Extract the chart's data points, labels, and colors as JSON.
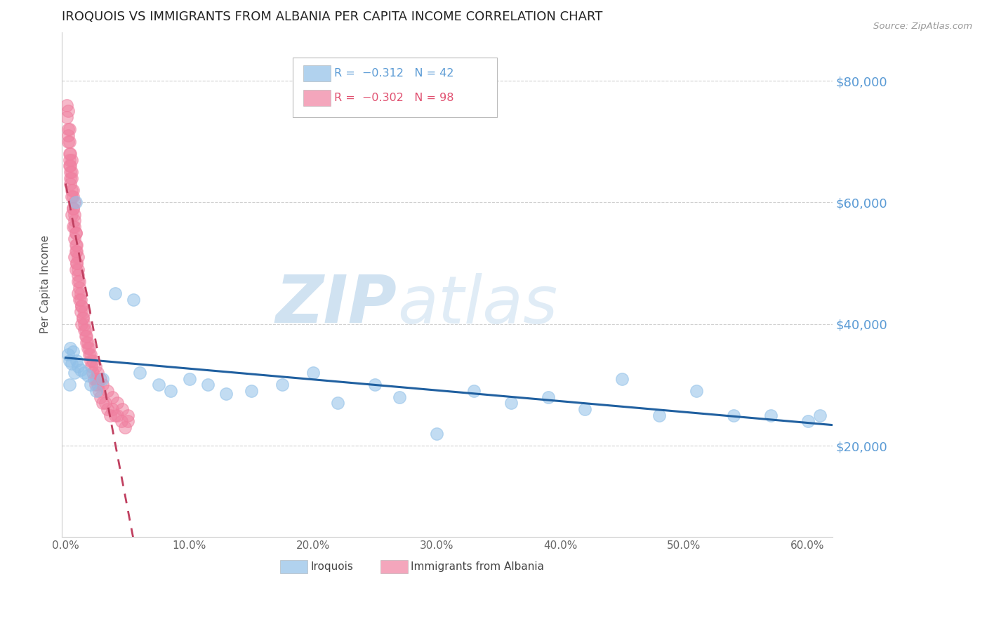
{
  "title": "IROQUOIS VS IMMIGRANTS FROM ALBANIA PER CAPITA INCOME CORRELATION CHART",
  "source": "Source: ZipAtlas.com",
  "ylabel": "Per Capita Income",
  "yticks": [
    20000,
    40000,
    60000,
    80000
  ],
  "ytick_labels": [
    "$20,000",
    "$40,000",
    "$60,000",
    "$80,000"
  ],
  "xlim": [
    -0.003,
    0.62
  ],
  "ylim": [
    5000,
    88000
  ],
  "watermark_zip": "ZIP",
  "watermark_atlas": "atlas",
  "legend_bottom": [
    "Iroquois",
    "Immigrants from Albania"
  ],
  "iroquois_color": "#90C0E8",
  "albania_color": "#F080A0",
  "bg_color": "#FFFFFF",
  "grid_color": "#D0D0D0",
  "title_color": "#222222",
  "tick_label_color": "#5B9BD5",
  "trend_blue_color": "#2060A0",
  "trend_pink_color": "#C04060",
  "watermark_color": "#C8DDEF",
  "iroquois_x": [
    0.002,
    0.003,
    0.004,
    0.005,
    0.006,
    0.007,
    0.008,
    0.009,
    0.01,
    0.012,
    0.015,
    0.018,
    0.02,
    0.025,
    0.03,
    0.04,
    0.055,
    0.06,
    0.075,
    0.085,
    0.1,
    0.115,
    0.13,
    0.15,
    0.175,
    0.2,
    0.22,
    0.25,
    0.27,
    0.3,
    0.33,
    0.36,
    0.39,
    0.42,
    0.45,
    0.48,
    0.51,
    0.54,
    0.57,
    0.6,
    0.61,
    0.003
  ],
  "iroquois_y": [
    35000,
    34000,
    36000,
    33500,
    35500,
    32000,
    60000,
    34000,
    33000,
    32500,
    32000,
    31500,
    30000,
    29000,
    31000,
    45000,
    44000,
    32000,
    30000,
    29000,
    31000,
    30000,
    28500,
    29000,
    30000,
    32000,
    27000,
    30000,
    28000,
    22000,
    29000,
    27000,
    28000,
    26000,
    31000,
    25000,
    29000,
    25000,
    25000,
    24000,
    25000,
    30000
  ],
  "albania_x": [
    0.001,
    0.001,
    0.002,
    0.002,
    0.003,
    0.003,
    0.003,
    0.004,
    0.004,
    0.004,
    0.005,
    0.005,
    0.005,
    0.005,
    0.006,
    0.006,
    0.006,
    0.007,
    0.007,
    0.007,
    0.007,
    0.008,
    0.008,
    0.008,
    0.009,
    0.009,
    0.01,
    0.01,
    0.01,
    0.011,
    0.011,
    0.012,
    0.012,
    0.013,
    0.013,
    0.014,
    0.015,
    0.015,
    0.016,
    0.017,
    0.018,
    0.019,
    0.02,
    0.021,
    0.022,
    0.023,
    0.024,
    0.025,
    0.026,
    0.027,
    0.028,
    0.03,
    0.032,
    0.034,
    0.036,
    0.038,
    0.04,
    0.042,
    0.045,
    0.048,
    0.05,
    0.002,
    0.002,
    0.003,
    0.003,
    0.004,
    0.004,
    0.005,
    0.005,
    0.006,
    0.006,
    0.007,
    0.007,
    0.008,
    0.008,
    0.009,
    0.009,
    0.01,
    0.01,
    0.011,
    0.012,
    0.013,
    0.014,
    0.015,
    0.016,
    0.017,
    0.018,
    0.019,
    0.02,
    0.022,
    0.024,
    0.026,
    0.028,
    0.03,
    0.034,
    0.038,
    0.042,
    0.046,
    0.05
  ],
  "albania_y": [
    76000,
    74000,
    72000,
    70000,
    68000,
    72000,
    66000,
    65000,
    68000,
    63000,
    67000,
    64000,
    61000,
    58000,
    62000,
    59000,
    56000,
    60000,
    57000,
    54000,
    51000,
    55000,
    52000,
    49000,
    53000,
    50000,
    51000,
    48000,
    45000,
    47000,
    44000,
    45000,
    42000,
    43000,
    40000,
    41000,
    42000,
    39000,
    38000,
    37000,
    36000,
    35000,
    34000,
    33000,
    32000,
    31000,
    30000,
    31000,
    30000,
    29000,
    28000,
    27000,
    27000,
    26000,
    25000,
    26000,
    25000,
    25000,
    24000,
    23000,
    24000,
    75000,
    71000,
    70000,
    67000,
    66000,
    64000,
    65000,
    62000,
    61000,
    59000,
    58000,
    56000,
    55000,
    53000,
    52000,
    50000,
    49000,
    47000,
    46000,
    44000,
    43000,
    41000,
    40000,
    39000,
    38000,
    37000,
    36000,
    35000,
    34000,
    33000,
    32000,
    31000,
    30000,
    29000,
    28000,
    27000,
    26000,
    25000
  ]
}
